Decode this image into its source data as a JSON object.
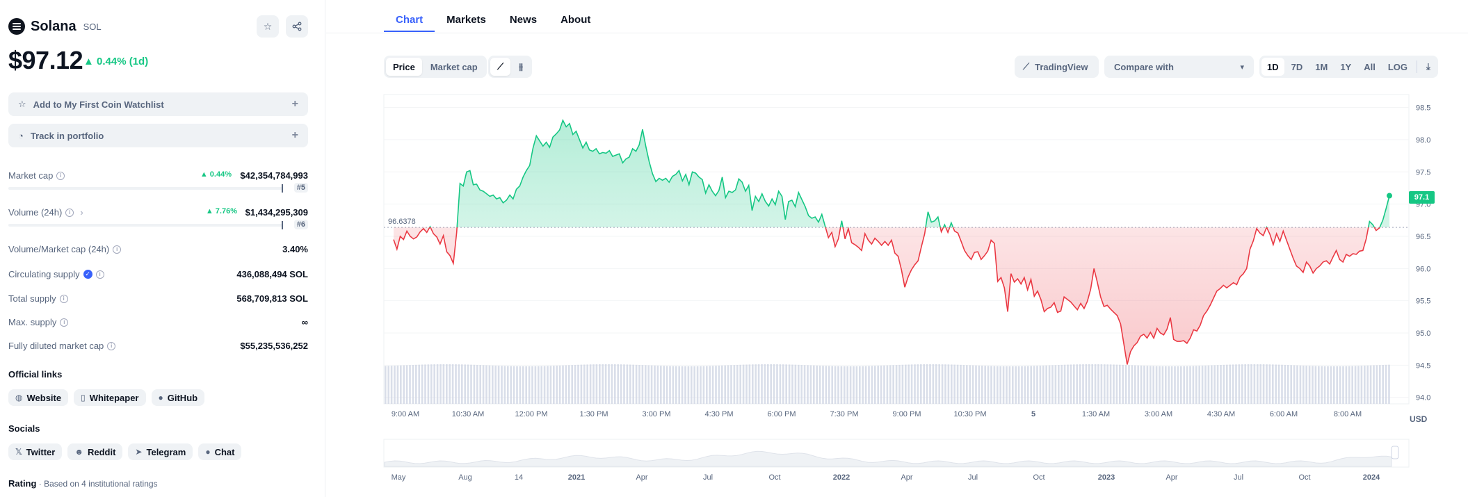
{
  "coin": {
    "name": "Solana",
    "symbol": "SOL",
    "price": "$97.12",
    "change": "▲ 0.44% (1d)"
  },
  "actions": {
    "watchlist": "Add to My First Coin Watchlist",
    "portfolio": "Track in portfolio"
  },
  "stats": {
    "market_cap": {
      "label": "Market cap",
      "change": "▲ 0.44%",
      "value": "$42,354,784,993",
      "rank": "#5"
    },
    "volume": {
      "label": "Volume (24h)",
      "change": "▲ 7.76%",
      "value": "$1,434,295,309",
      "rank": "#6"
    },
    "vol_mcap": {
      "label": "Volume/Market cap (24h)",
      "value": "3.40%"
    },
    "circulating": {
      "label": "Circulating supply",
      "value": "436,088,494 SOL"
    },
    "total": {
      "label": "Total supply",
      "value": "568,709,813 SOL"
    },
    "max": {
      "label": "Max. supply",
      "value": "∞"
    },
    "fdmc": {
      "label": "Fully diluted market cap",
      "value": "$55,235,536,252"
    }
  },
  "links": {
    "title": "Official links",
    "items": [
      "Website",
      "Whitepaper",
      "GitHub"
    ]
  },
  "socials": {
    "title": "Socials",
    "items": [
      "Twitter",
      "Reddit",
      "Telegram",
      "Chat"
    ]
  },
  "rating": {
    "label": "Rating",
    "note": "Based on 4 institutional ratings"
  },
  "tabs": [
    "Chart",
    "Markets",
    "News",
    "About"
  ],
  "toolbar": {
    "price": "Price",
    "market_cap": "Market cap",
    "tradingview": "TradingView",
    "compare": "Compare with",
    "ranges": [
      "1D",
      "7D",
      "1M",
      "1Y",
      "All",
      "LOG"
    ]
  },
  "chart_data": {
    "type": "line",
    "baseline": 96.6378,
    "baseline_label": "96.6378",
    "current_price_label": "97.1",
    "currency": "USD",
    "ylim": [
      93.9,
      98.7
    ],
    "y_ticks": [
      "98.5",
      "98.0",
      "97.5",
      "97.0",
      "96.5",
      "96.0",
      "95.5",
      "95.0",
      "94.5",
      "94.0"
    ],
    "x_ticks": [
      "9:00 AM",
      "10:30 AM",
      "12:00 PM",
      "1:30 PM",
      "3:00 PM",
      "4:30 PM",
      "6:00 PM",
      "7:30 PM",
      "9:00 PM",
      "10:30 PM",
      "5",
      "1:30 AM",
      "3:00 AM",
      "4:30 AM",
      "6:00 AM",
      "8:00 AM"
    ],
    "nav_ticks": [
      "May",
      "Aug",
      "14",
      "2021",
      "Apr",
      "Jul",
      "Oct",
      "2022",
      "Apr",
      "Jul",
      "Oct",
      "2023",
      "Apr",
      "Jul",
      "Oct",
      "2024"
    ],
    "series": [
      {
        "values": [
          96.45,
          96.3,
          96.5,
          96.45,
          96.58,
          96.5,
          96.46,
          96.49,
          96.57,
          96.62,
          96.56,
          96.65,
          96.54,
          96.49,
          96.38,
          96.51,
          96.26,
          96.2,
          96.08,
          96.56,
          97.32,
          97.28,
          97.5,
          97.52,
          97.3,
          97.31,
          97.22,
          97.2,
          97.16,
          97.12,
          97.14,
          97.08,
          97.1,
          97.02,
          97.06,
          97.14,
          97.08,
          97.23,
          97.28,
          97.42,
          97.52,
          97.6,
          97.87,
          98.06,
          97.98,
          97.9,
          97.96,
          97.88,
          98.04,
          98.09,
          98.15,
          98.3,
          98.2,
          98.25,
          98.08,
          98.13,
          98.0,
          97.87,
          97.96,
          97.84,
          97.82,
          97.86,
          97.78,
          97.8,
          97.79,
          97.83,
          97.74,
          97.76,
          97.78,
          97.64,
          97.7,
          97.73,
          97.86,
          97.82,
          97.92,
          98.16,
          97.89,
          97.66,
          97.47,
          97.35,
          97.4,
          97.37,
          97.4,
          97.34,
          97.43,
          97.46,
          97.52,
          97.36,
          97.46,
          97.3,
          97.5,
          97.48,
          97.42,
          97.38,
          97.17,
          97.3,
          97.2,
          97.13,
          97.21,
          97.42,
          97.1,
          97.2,
          97.18,
          97.22,
          97.39,
          97.34,
          97.2,
          97.29,
          96.9,
          97.12,
          97.04,
          97.16,
          97.04,
          96.97,
          97.08,
          96.99,
          97.2,
          97.12,
          96.76,
          97.04,
          97.06,
          96.96,
          97.18,
          97.07,
          96.96,
          96.82,
          96.78,
          96.8,
          96.72,
          96.84,
          96.66,
          96.48,
          96.56,
          96.34,
          96.46,
          96.74,
          96.46,
          96.62,
          96.4,
          96.37,
          96.33,
          96.28,
          96.54,
          96.44,
          96.38,
          96.47,
          96.42,
          96.36,
          96.42,
          96.36,
          96.44,
          96.24,
          96.19,
          95.98,
          95.71,
          95.87,
          95.98,
          96.06,
          96.12,
          96.34,
          96.54,
          96.88,
          96.72,
          96.74,
          96.8,
          96.57,
          96.68,
          96.56,
          96.71,
          96.58,
          96.55,
          96.42,
          96.28,
          96.2,
          96.14,
          96.25,
          96.26,
          96.14,
          96.2,
          96.27,
          96.44,
          96.39,
          95.8,
          95.86,
          95.7,
          95.33,
          95.92,
          95.79,
          95.84,
          95.76,
          95.86,
          95.67,
          95.83,
          95.57,
          95.65,
          95.52,
          95.33,
          95.38,
          95.4,
          95.47,
          95.32,
          95.34,
          95.56,
          95.52,
          95.48,
          95.42,
          95.36,
          95.46,
          95.38,
          95.49,
          95.68,
          96.0,
          95.79,
          95.56,
          95.41,
          95.43,
          95.37,
          95.32,
          95.27,
          95.14,
          94.83,
          94.51,
          94.71,
          94.8,
          94.85,
          94.95,
          94.98,
          94.92,
          95.01,
          94.92,
          95.07,
          95.0,
          94.97,
          95.06,
          95.24,
          94.9,
          94.87,
          94.87,
          94.88,
          94.84,
          94.92,
          95.05,
          95.03,
          95.12,
          95.27,
          95.34,
          95.43,
          95.54,
          95.65,
          95.69,
          95.74,
          95.7,
          95.74,
          95.78,
          95.75,
          95.87,
          95.92,
          96.0,
          96.3,
          96.43,
          96.62,
          96.55,
          96.51,
          96.64,
          96.53,
          96.37,
          96.54,
          96.42,
          96.58,
          96.44,
          96.3,
          96.16,
          96.04,
          96.0,
          95.94,
          96.1,
          96.04,
          95.93,
          96.0,
          96.04,
          96.1,
          96.12,
          96.07,
          96.18,
          96.28,
          96.14,
          96.1,
          96.22,
          96.19,
          96.23,
          96.22,
          96.27,
          96.28,
          96.46,
          96.73,
          96.68,
          96.59,
          96.63,
          96.75,
          96.93,
          97.13
        ]
      }
    ],
    "volume_level": 0.92
  }
}
